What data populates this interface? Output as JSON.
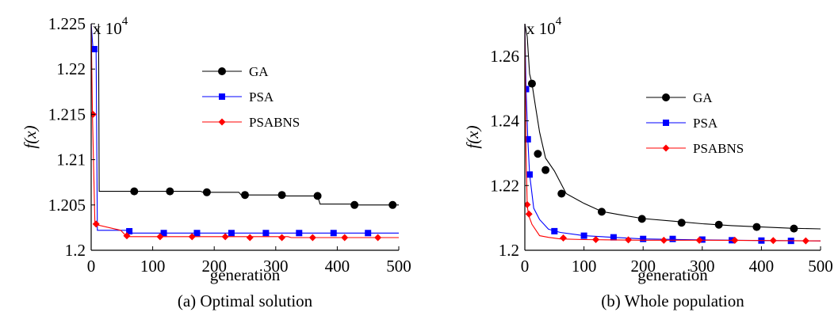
{
  "chart_data": [
    {
      "type": "line",
      "caption": "(a) Optimal solution",
      "xlabel": "generation",
      "ylabel": "f(x)",
      "multiplier": "x 10",
      "multiplier_exp": "4",
      "xlim": [
        0,
        500
      ],
      "ylim": [
        1.2,
        1.225
      ],
      "xticks": [
        0,
        100,
        200,
        300,
        400,
        500
      ],
      "yticks": [
        1.2,
        1.205,
        1.21,
        1.215,
        1.22,
        1.225
      ],
      "ytick_labels": [
        "1.2",
        "1.205",
        "1.21",
        "1.215",
        "1.22",
        "1.225"
      ],
      "legend_position": "right",
      "series": [
        {
          "name": "GA",
          "color": "#000000",
          "marker": "circle",
          "line": [
            [
              12,
              1.225
            ],
            [
              13,
              1.2065
            ],
            [
              178,
              1.2065
            ],
            [
              182,
              1.2064
            ],
            [
              240,
              1.2064
            ],
            [
              244,
              1.2061
            ],
            [
              312,
              1.2061
            ],
            [
              316,
              1.206
            ],
            [
              368,
              1.206
            ],
            [
              372,
              1.2051
            ],
            [
              425,
              1.2051
            ],
            [
              428,
              1.205
            ],
            [
              500,
              1.205
            ]
          ],
          "markers": [
            [
              70,
              1.2065
            ],
            [
              128,
              1.2065
            ],
            [
              188,
              1.2064
            ],
            [
              250,
              1.2061
            ],
            [
              310,
              1.2061
            ],
            [
              368,
              1.206
            ],
            [
              428,
              1.205
            ],
            [
              490,
              1.205
            ]
          ]
        },
        {
          "name": "PSA",
          "color": "#0000ff",
          "marker": "square",
          "line": [
            [
              0,
              1.225
            ],
            [
              3,
              1.2222
            ],
            [
              8,
              1.2222
            ],
            [
              10,
              1.2022
            ],
            [
              60,
              1.2022
            ],
            [
              64,
              1.2019
            ],
            [
              500,
              1.2019
            ]
          ],
          "markers": [
            [
              5,
              1.2222
            ],
            [
              62,
              1.2021
            ],
            [
              118,
              1.2019
            ],
            [
              172,
              1.2019
            ],
            [
              228,
              1.2019
            ],
            [
              284,
              1.2019
            ],
            [
              338,
              1.2019
            ],
            [
              394,
              1.2019
            ],
            [
              450,
              1.2019
            ]
          ]
        },
        {
          "name": "PSABNS",
          "color": "#ff0000",
          "marker": "diamond",
          "line": [
            [
              0,
              1.225
            ],
            [
              2,
              1.215
            ],
            [
              6,
              1.203
            ],
            [
              10,
              1.2028
            ],
            [
              48,
              1.2022
            ],
            [
              58,
              1.2015
            ],
            [
              320,
              1.2015
            ],
            [
              325,
              1.2014
            ],
            [
              500,
              1.2014
            ]
          ],
          "markers": [
            [
              3,
              1.215
            ],
            [
              8,
              1.2029
            ],
            [
              58,
              1.2016
            ],
            [
              112,
              1.2015
            ],
            [
              164,
              1.2015
            ],
            [
              218,
              1.2015
            ],
            [
              258,
              1.2014
            ],
            [
              310,
              1.2014
            ],
            [
              360,
              1.2014
            ],
            [
              412,
              1.2014
            ],
            [
              466,
              1.2014
            ]
          ]
        }
      ]
    },
    {
      "type": "line",
      "caption": "(b) Whole population",
      "xlabel": "generation",
      "ylabel": "f(x)",
      "multiplier": "x 10",
      "multiplier_exp": "4",
      "xlim": [
        0,
        500
      ],
      "ylim": [
        1.2,
        1.27
      ],
      "xticks": [
        0,
        100,
        200,
        300,
        400,
        500
      ],
      "yticks": [
        1.2,
        1.22,
        1.24,
        1.26
      ],
      "ytick_labels": [
        "1.2",
        "1.22",
        "1.24",
        "1.26"
      ],
      "legend_position": "right",
      "series": [
        {
          "name": "GA",
          "color": "#000000",
          "marker": "circle",
          "line": [
            [
              0,
              1.27
            ],
            [
              4,
              1.266
            ],
            [
              8,
              1.2545
            ],
            [
              12,
              1.2515
            ],
            [
              18,
              1.2445
            ],
            [
              25,
              1.2365
            ],
            [
              35,
              1.2285
            ],
            [
              50,
              1.2245
            ],
            [
              70,
              1.2175
            ],
            [
              100,
              1.2145
            ],
            [
              130,
              1.212
            ],
            [
              160,
              1.211
            ],
            [
              200,
              1.2098
            ],
            [
              250,
              1.209
            ],
            [
              300,
              1.2082
            ],
            [
              350,
              1.2076
            ],
            [
              400,
              1.2072
            ],
            [
              450,
              1.2068
            ],
            [
              500,
              1.2066
            ]
          ],
          "markers": [
            [
              12,
              1.2515
            ],
            [
              22,
              1.2298
            ],
            [
              35,
              1.2248
            ],
            [
              62,
              1.2175
            ],
            [
              130,
              1.2119
            ],
            [
              198,
              1.2097
            ],
            [
              265,
              1.2085
            ],
            [
              328,
              1.2079
            ],
            [
              392,
              1.2072
            ],
            [
              455,
              1.2067
            ]
          ]
        },
        {
          "name": "PSA",
          "color": "#0000ff",
          "marker": "square",
          "line": [
            [
              0,
              1.27
            ],
            [
              2,
              1.25
            ],
            [
              5,
              1.2345
            ],
            [
              8,
              1.2235
            ],
            [
              15,
              1.213
            ],
            [
              25,
              1.2095
            ],
            [
              40,
              1.2065
            ],
            [
              60,
              1.2055
            ],
            [
              100,
              1.2045
            ],
            [
              150,
              1.204
            ],
            [
              200,
              1.2035
            ],
            [
              300,
              1.2032
            ],
            [
              400,
              1.203
            ],
            [
              500,
              1.2029
            ]
          ],
          "markers": [
            [
              2,
              1.2498
            ],
            [
              5,
              1.2343
            ],
            [
              8,
              1.2234
            ],
            [
              50,
              1.2059
            ],
            [
              100,
              1.2045
            ],
            [
              150,
              1.204
            ],
            [
              200,
              1.2035
            ],
            [
              250,
              1.2035
            ],
            [
              300,
              1.2033
            ],
            [
              350,
              1.2031
            ],
            [
              400,
              1.203
            ],
            [
              450,
              1.2029
            ]
          ]
        },
        {
          "name": "PSABNS",
          "color": "#ff0000",
          "marker": "diamond",
          "line": [
            [
              0,
              1.27
            ],
            [
              2,
              1.23
            ],
            [
              4,
              1.214
            ],
            [
              6,
              1.211
            ],
            [
              12,
              1.208
            ],
            [
              25,
              1.2045
            ],
            [
              40,
              1.204
            ],
            [
              60,
              1.2035
            ],
            [
              100,
              1.2033
            ],
            [
              200,
              1.2031
            ],
            [
              300,
              1.2031
            ],
            [
              400,
              1.203
            ],
            [
              500,
              1.2029
            ]
          ],
          "markers": [
            [
              4,
              1.2141
            ],
            [
              7,
              1.2112
            ],
            [
              65,
              1.2038
            ],
            [
              120,
              1.2033
            ],
            [
              175,
              1.2032
            ],
            [
              235,
              1.2031
            ],
            [
              295,
              1.2031
            ],
            [
              355,
              1.2031
            ],
            [
              420,
              1.203
            ],
            [
              475,
              1.2029
            ]
          ]
        }
      ]
    }
  ]
}
